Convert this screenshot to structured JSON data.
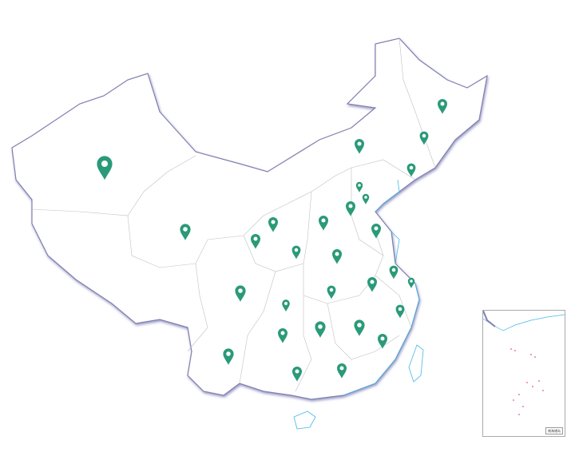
{
  "map": {
    "land_color": "#ffffff",
    "border_color": "#9c9cc0",
    "province_line_color": "#bbbbbb",
    "river_color": "#44b8e8",
    "marker_color": "#2a9a78",
    "marker_icon": "map-pin-icon"
  },
  "inset": {
    "title": "南海诸岛"
  }
}
